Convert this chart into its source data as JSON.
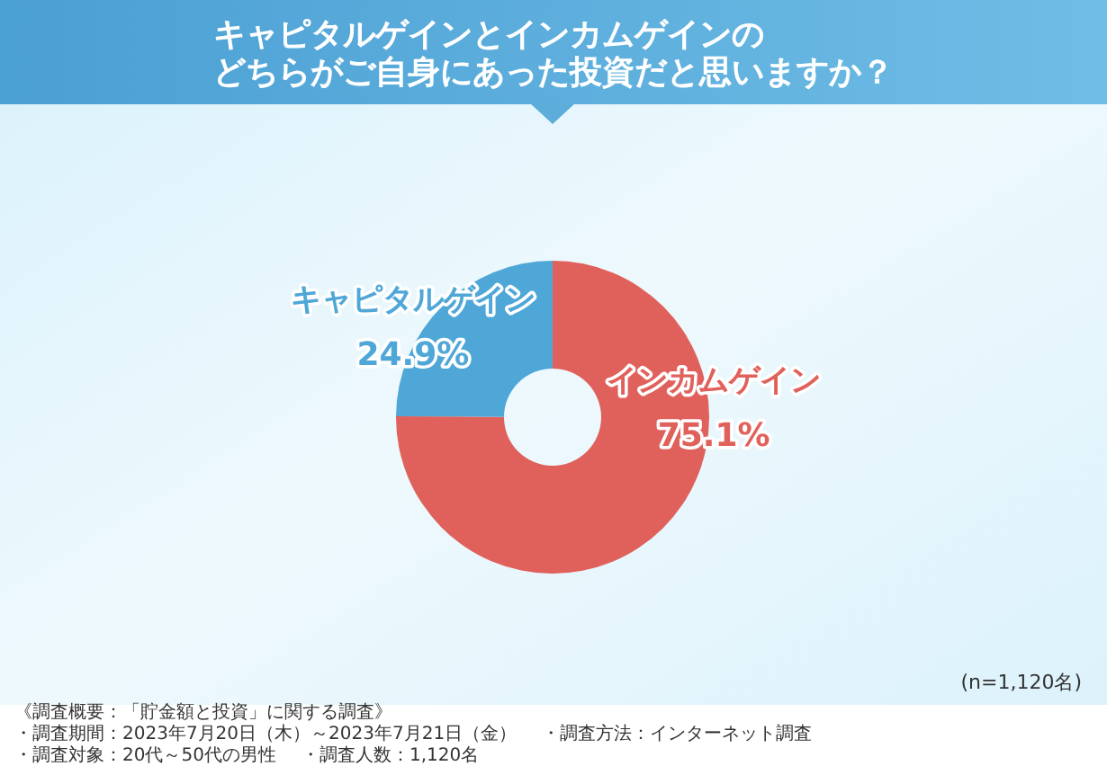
{
  "chart_data": {
    "type": "donut",
    "title": "キャピタルゲインとインカムゲインのどちらがご自身にあった投資だと思いますか？",
    "categories": [
      "インカムゲイン",
      "キャピタルゲイン"
    ],
    "values": [
      75.1,
      24.9
    ],
    "colors": [
      "#e0615b",
      "#4fa7d8"
    ],
    "value_labels": [
      "75.1%",
      "24.9%"
    ],
    "annotations": [
      "(n=1,120名)",
      "《調査概要：「貯金額と投資」に関する調査》",
      "・調査期間：2023年7月20日（木）～2023年7月21日（金）",
      "・調査対象：20代～50代の男性",
      "・調査人数：1,120名",
      "・調査方法：インターネット調査"
    ]
  }
}
